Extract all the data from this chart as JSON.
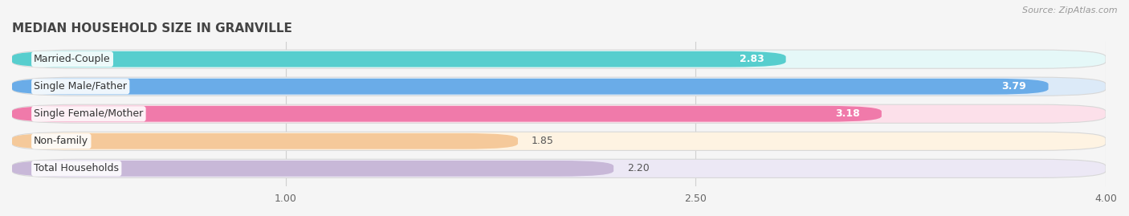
{
  "title": "MEDIAN HOUSEHOLD SIZE IN GRANVILLE",
  "source": "Source: ZipAtlas.com",
  "categories": [
    "Married-Couple",
    "Single Male/Father",
    "Single Female/Mother",
    "Non-family",
    "Total Households"
  ],
  "values": [
    2.83,
    3.79,
    3.18,
    1.85,
    2.2
  ],
  "bar_colors": [
    "#57cece",
    "#6aace8",
    "#f07aaa",
    "#f5c99a",
    "#c8b8d8"
  ],
  "background_colors": [
    "#e5f8f8",
    "#dceaf8",
    "#fce0ea",
    "#fef3e2",
    "#ece8f5"
  ],
  "x_min": 0,
  "x_max": 4.0,
  "x_ticks": [
    1.0,
    2.5,
    4.0
  ],
  "bar_height": 0.68,
  "title_fontsize": 11,
  "label_fontsize": 9,
  "value_fontsize": 9,
  "tick_fontsize": 9,
  "fig_width": 14.06,
  "fig_height": 2.69,
  "bg_color": "#f5f5f5",
  "value_inside_threshold": 2.5
}
